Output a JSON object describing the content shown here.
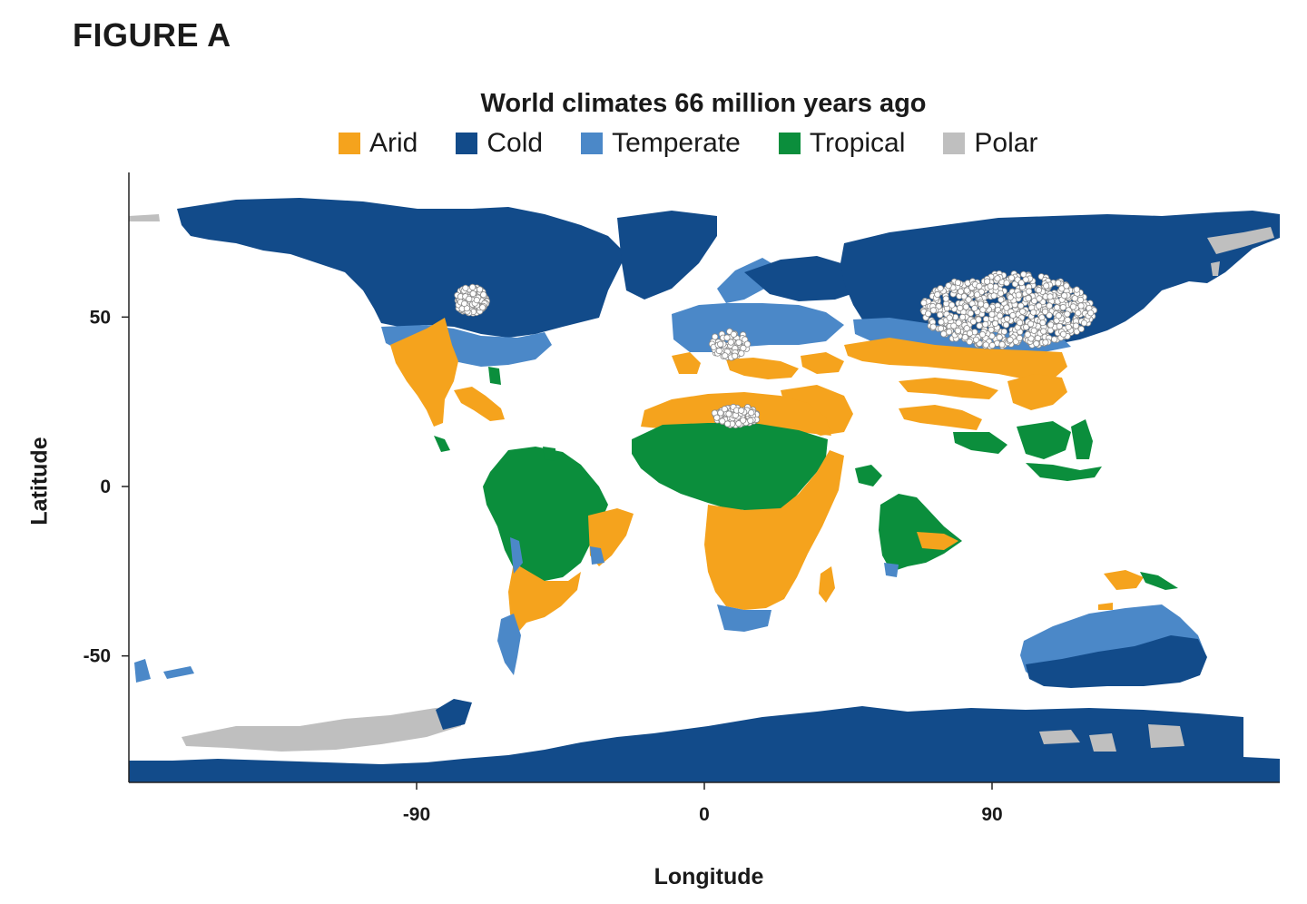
{
  "figure_label": "FIGURE A",
  "chart_data": {
    "type": "map",
    "title": "World climates 66 million years ago",
    "xlabel": "Longitude",
    "ylabel": "Latitude",
    "xlim": [
      -180,
      180
    ],
    "ylim": [
      -90,
      90
    ],
    "x_ticks": [
      {
        "value": -90,
        "label": "-90"
      },
      {
        "value": 0,
        "label": "0"
      },
      {
        "value": 90,
        "label": "90"
      }
    ],
    "y_ticks": [
      {
        "value": 50,
        "label": "50"
      },
      {
        "value": 0,
        "label": "0"
      },
      {
        "value": -50,
        "label": "-50"
      }
    ],
    "legend": [
      {
        "key": "arid",
        "label": "Arid",
        "color": "#f5a31d"
      },
      {
        "key": "cold",
        "label": "Cold",
        "color": "#124b8a"
      },
      {
        "key": "temperate",
        "label": "Temperate",
        "color": "#4b88c8"
      },
      {
        "key": "tropical",
        "label": "Tropical",
        "color": "#0b8e3c"
      },
      {
        "key": "polar",
        "label": "Polar",
        "color": "#bfbfbf"
      }
    ],
    "point_clusters": [
      {
        "name": "north-america",
        "lon": -73,
        "lat": 55,
        "count": 160
      },
      {
        "name": "europe",
        "lon": 8,
        "lat": 42,
        "count": 90
      },
      {
        "name": "north-africa",
        "lon": 10,
        "lat": 21,
        "count": 110
      },
      {
        "name": "asia",
        "lon": 95,
        "lat": 52,
        "count": 720
      }
    ]
  }
}
